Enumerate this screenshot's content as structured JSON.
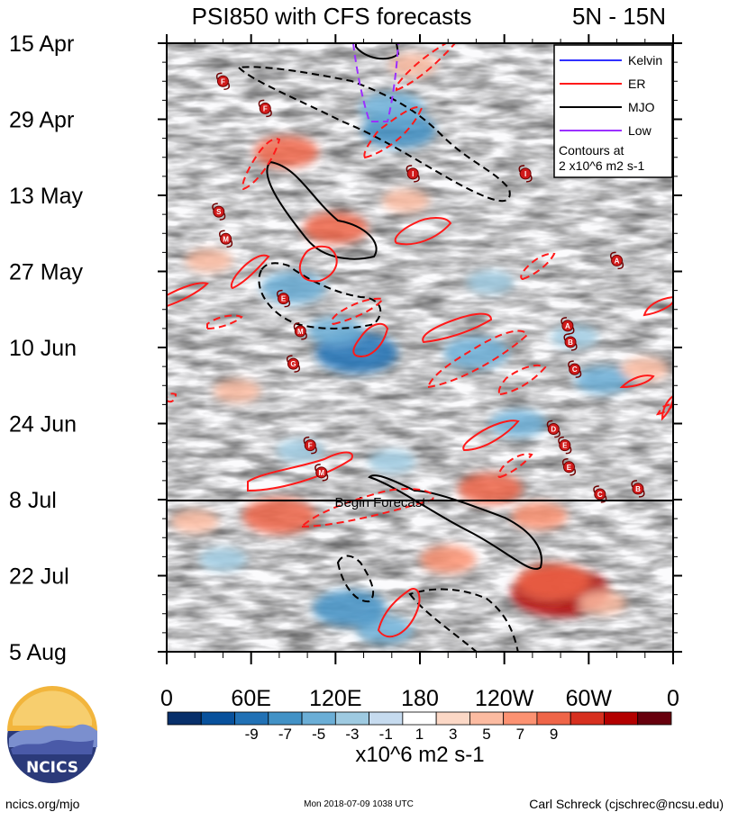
{
  "chart_data": {
    "type": "heatmap",
    "title": "PSI850 with CFS forecasts",
    "region": "5N - 15N",
    "y_tick_labels": [
      "15 Apr",
      "29 Apr",
      "13 May",
      "27 May",
      "10 Jun",
      "24 Jun",
      "8 Jul",
      "22 Jul",
      "5 Aug"
    ],
    "x_tick_labels": [
      "0",
      "60E",
      "120E",
      "180",
      "120W",
      "60W",
      "0"
    ],
    "forecast_label": "Begin Forecast",
    "legend": [
      {
        "name": "Kelvin",
        "color": "#3030ff",
        "style": "solid"
      },
      {
        "name": "ER",
        "color": "#ff1a1a",
        "style": "solid"
      },
      {
        "name": "MJO",
        "color": "#000000",
        "style": "solid"
      },
      {
        "name": "Low",
        "color": "#9b30ff",
        "style": "solid"
      }
    ],
    "contour_note_line1": "Contours at",
    "contour_note_line2": "2 x10^6 m2 s-1",
    "colorbar": {
      "ticks": [
        "-9",
        "-7",
        "-5",
        "-3",
        "-1",
        "1",
        "3",
        "5",
        "7",
        "9"
      ],
      "colors": [
        "#08306b",
        "#08519c",
        "#2171b5",
        "#4292c6",
        "#6baed6",
        "#9ecae1",
        "#c6dbef",
        "#ffffff",
        "#fcd8c6",
        "#fcbba1",
        "#fc9272",
        "#ef6548",
        "#d7301f",
        "#b30000",
        "#67000d"
      ],
      "units": "x10^6 m2 s-1"
    },
    "blobs": [
      {
        "lon": 165,
        "day": 16,
        "value": -6
      },
      {
        "lon": 160,
        "day": 12,
        "value": -5
      },
      {
        "lon": 90,
        "day": 45,
        "value": -5
      },
      {
        "lon": 135,
        "day": 57,
        "value": -7
      },
      {
        "lon": 120,
        "day": 53,
        "value": -4
      },
      {
        "lon": 220,
        "day": 57,
        "value": -5
      },
      {
        "lon": 250,
        "day": 70,
        "value": -4
      },
      {
        "lon": 155,
        "day": 108,
        "value": -4
      },
      {
        "lon": 130,
        "day": 104,
        "value": -6
      },
      {
        "lon": 95,
        "day": 75,
        "value": -3
      },
      {
        "lon": 230,
        "day": 44,
        "value": -3
      },
      {
        "lon": 310,
        "day": 62,
        "value": -4
      },
      {
        "lon": 160,
        "day": 77,
        "value": -3
      },
      {
        "lon": 290,
        "day": 54,
        "value": -3
      },
      {
        "lon": 40,
        "day": 95,
        "value": -3
      },
      {
        "lon": 280,
        "day": 101,
        "value": 9
      },
      {
        "lon": 275,
        "day": 99,
        "value": 6
      },
      {
        "lon": 80,
        "day": 87,
        "value": 6
      },
      {
        "lon": 85,
        "day": 20,
        "value": 5
      },
      {
        "lon": 120,
        "day": 34,
        "value": 5
      },
      {
        "lon": 170,
        "day": 29,
        "value": 3
      },
      {
        "lon": 175,
        "day": 4,
        "value": 3
      },
      {
        "lon": 230,
        "day": 82,
        "value": 5
      },
      {
        "lon": 265,
        "day": 87,
        "value": 4
      },
      {
        "lon": 340,
        "day": 60,
        "value": 3
      },
      {
        "lon": 200,
        "day": 95,
        "value": 4
      },
      {
        "lon": 30,
        "day": 40,
        "value": 3
      },
      {
        "lon": 50,
        "day": 64,
        "value": 3
      },
      {
        "lon": 20,
        "day": 88,
        "value": 3
      },
      {
        "lon": 310,
        "day": 103,
        "value": 3
      }
    ],
    "storms": [
      {
        "letter": "F",
        "lon": 40,
        "day": 7
      },
      {
        "letter": "F",
        "lon": 70,
        "day": 12
      },
      {
        "letter": "I",
        "lon": 175,
        "day": 24
      },
      {
        "letter": "I",
        "lon": 255,
        "day": 24
      },
      {
        "letter": "S",
        "lon": 37,
        "day": 31
      },
      {
        "letter": "M",
        "lon": 42,
        "day": 36
      },
      {
        "letter": "A",
        "lon": 320,
        "day": 40
      },
      {
        "letter": "E",
        "lon": 83,
        "day": 47
      },
      {
        "letter": "M",
        "lon": 95,
        "day": 53
      },
      {
        "lon": 285,
        "day": 52,
        "letter": "A"
      },
      {
        "lon": 287,
        "day": 55,
        "letter": "B"
      },
      {
        "letter": "G",
        "lon": 90,
        "day": 59
      },
      {
        "letter": "C",
        "lon": 290,
        "day": 60
      },
      {
        "letter": "D",
        "lon": 275,
        "day": 71
      },
      {
        "letter": "F",
        "lon": 102,
        "day": 74
      },
      {
        "letter": "E",
        "lon": 283,
        "day": 74
      },
      {
        "letter": "E",
        "lon": 286,
        "day": 78
      },
      {
        "letter": "M",
        "lon": 110,
        "day": 79
      },
      {
        "letter": "C",
        "lon": 308,
        "day": 83
      },
      {
        "letter": "B",
        "lon": 335,
        "day": 82
      }
    ]
  },
  "logo": {
    "text": "NCICS"
  },
  "footer": {
    "website": "ncics.org/mjo",
    "timestamp": "Mon 2018-07-09 1038 UTC",
    "author": "Carl Schreck (cjschrec@ncsu.edu)"
  }
}
